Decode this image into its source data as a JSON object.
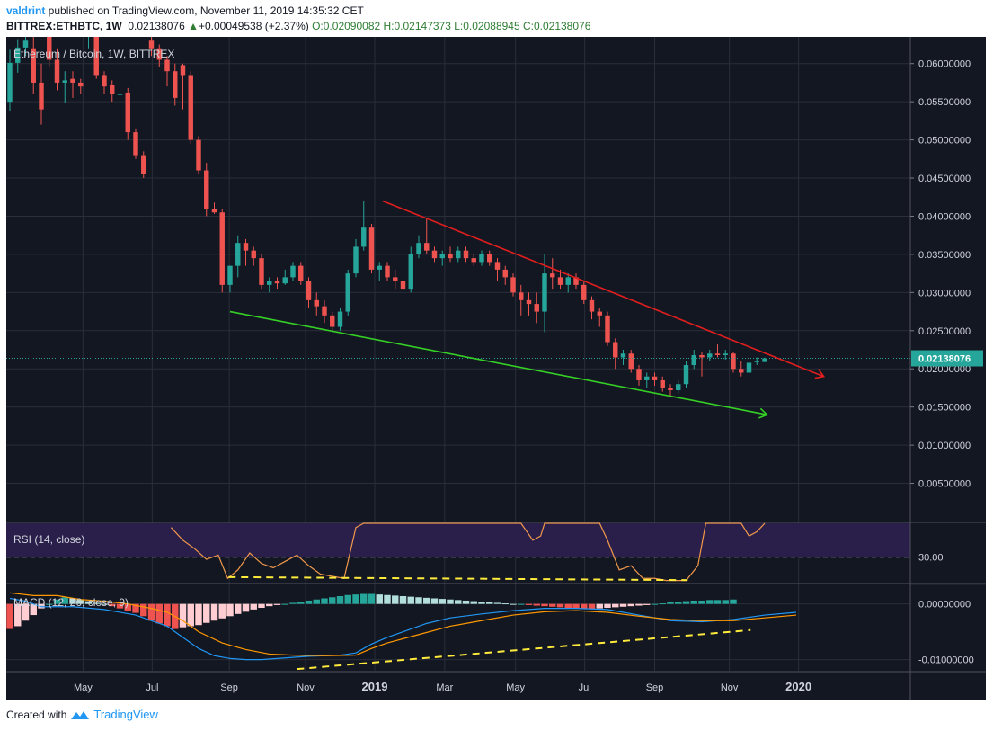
{
  "header": {
    "line1": {
      "user": "valdrint",
      "text": " published on TradingView.com, November 11, 2019 14:35:32 CET"
    },
    "line2": {
      "symbol": "BITTREX:ETHBTC, 1W",
      "last": "0.02138076",
      "change": "+0.00049538 (+2.37%)",
      "ohlc_text": "O:0.02090082  H:0.02147373  L:0.02088945  C:0.02138076"
    }
  },
  "chart_data": {
    "type": "candlestick",
    "title": "Ethereum / Bitcoin, 1W, BITTREX",
    "price_axis": {
      "ticks": [
        "0.06000000",
        "0.05500000",
        "0.05000000",
        "0.04500000",
        "0.04000000",
        "0.03500000",
        "0.03000000",
        "0.02500000",
        "0.02000000",
        "0.01500000",
        "0.01000000",
        "0.00500000"
      ],
      "tick_values": [
        0.06,
        0.055,
        0.05,
        0.045,
        0.04,
        0.035,
        0.03,
        0.025,
        0.02,
        0.015,
        0.01,
        0.005
      ],
      "ylim": [
        0.0,
        0.0635
      ],
      "current_price_label": "0.02138076",
      "current_price": 0.02138076
    },
    "time_axis": {
      "labels": [
        "May",
        "Jul",
        "Sep",
        "Nov",
        "2019",
        "Mar",
        "May",
        "Jul",
        "Sep",
        "Nov",
        "2020"
      ],
      "label_weeks": [
        9.3,
        18.1,
        27.9,
        37.6,
        46.4,
        55.3,
        64.3,
        73.1,
        82.0,
        91.5,
        100.3
      ],
      "bold": [
        "2019",
        "2020"
      ]
    },
    "candles": [
      [
        0.055,
        0.0618,
        0.0538,
        0.0601
      ],
      [
        0.0601,
        0.0632,
        0.0588,
        0.0621
      ],
      [
        0.0621,
        0.065,
        0.061,
        0.063
      ],
      [
        0.062,
        0.0635,
        0.056,
        0.0575
      ],
      [
        0.0575,
        0.06,
        0.052,
        0.054
      ],
      [
        0.0635,
        0.065,
        0.0595,
        0.0605
      ],
      [
        0.0605,
        0.062,
        0.0565,
        0.0575
      ],
      [
        0.0575,
        0.059,
        0.0548,
        0.0578
      ],
      [
        0.058,
        0.059,
        0.0555,
        0.0575
      ],
      [
        0.0575,
        0.058,
        0.056,
        0.057
      ],
      [
        0.064,
        0.066,
        0.062,
        0.0645
      ],
      [
        0.0638,
        0.0645,
        0.058,
        0.0585
      ],
      [
        0.0585,
        0.059,
        0.056,
        0.057
      ],
      [
        0.0572,
        0.0578,
        0.055,
        0.056
      ],
      [
        0.056,
        0.057,
        0.0545,
        0.056
      ],
      [
        0.0562,
        0.0568,
        0.05,
        0.051
      ],
      [
        0.051,
        0.0515,
        0.0475,
        0.048
      ],
      [
        0.048,
        0.0485,
        0.045,
        0.0455
      ],
      [
        0.063,
        0.064,
        0.061,
        0.062
      ],
      [
        0.062,
        0.0625,
        0.0595,
        0.0605
      ],
      [
        0.0605,
        0.061,
        0.057,
        0.059
      ],
      [
        0.059,
        0.06,
        0.0545,
        0.0555
      ],
      [
        0.0598,
        0.06,
        0.054,
        0.0585
      ],
      [
        0.0585,
        0.059,
        0.0495,
        0.05
      ],
      [
        0.05,
        0.0505,
        0.0455,
        0.046
      ],
      [
        0.046,
        0.047,
        0.04,
        0.041
      ],
      [
        0.041,
        0.0418,
        0.0403,
        0.0405
      ],
      [
        0.0405,
        0.041,
        0.03,
        0.031
      ],
      [
        0.031,
        0.0335,
        0.03,
        0.0335
      ],
      [
        0.0335,
        0.0375,
        0.032,
        0.0365
      ],
      [
        0.0365,
        0.037,
        0.0335,
        0.0355
      ],
      [
        0.0355,
        0.036,
        0.0335,
        0.0345
      ],
      [
        0.0345,
        0.035,
        0.0305,
        0.031
      ],
      [
        0.031,
        0.032,
        0.03,
        0.0315
      ],
      [
        0.0315,
        0.032,
        0.0305,
        0.0312
      ],
      [
        0.0312,
        0.033,
        0.031,
        0.032
      ],
      [
        0.032,
        0.034,
        0.0315,
        0.0335
      ],
      [
        0.0335,
        0.034,
        0.031,
        0.0315
      ],
      [
        0.0315,
        0.032,
        0.028,
        0.029
      ],
      [
        0.029,
        0.03,
        0.027,
        0.0282
      ],
      [
        0.0282,
        0.029,
        0.026,
        0.027
      ],
      [
        0.027,
        0.0275,
        0.025,
        0.0255
      ],
      [
        0.0255,
        0.028,
        0.025,
        0.0275
      ],
      [
        0.0275,
        0.033,
        0.027,
        0.0325
      ],
      [
        0.0325,
        0.037,
        0.032,
        0.036
      ],
      [
        0.036,
        0.042,
        0.0355,
        0.0385
      ],
      [
        0.0385,
        0.039,
        0.0325,
        0.033
      ],
      [
        0.033,
        0.034,
        0.0315,
        0.0335
      ],
      [
        0.0335,
        0.034,
        0.0315,
        0.032
      ],
      [
        0.032,
        0.033,
        0.0305,
        0.0315
      ],
      [
        0.0315,
        0.032,
        0.03,
        0.0305
      ],
      [
        0.0305,
        0.036,
        0.03,
        0.035
      ],
      [
        0.035,
        0.0375,
        0.0345,
        0.0365
      ],
      [
        0.0365,
        0.0397,
        0.035,
        0.0355
      ],
      [
        0.0355,
        0.036,
        0.034,
        0.0345
      ],
      [
        0.0345,
        0.0355,
        0.0335,
        0.035
      ],
      [
        0.035,
        0.036,
        0.034,
        0.0345
      ],
      [
        0.0345,
        0.036,
        0.034,
        0.0355
      ],
      [
        0.0355,
        0.036,
        0.034,
        0.0345
      ],
      [
        0.0345,
        0.035,
        0.0335,
        0.034
      ],
      [
        0.034,
        0.0355,
        0.0335,
        0.035
      ],
      [
        0.035,
        0.0355,
        0.0335,
        0.034
      ],
      [
        0.034,
        0.0345,
        0.0315,
        0.033
      ],
      [
        0.033,
        0.0335,
        0.031,
        0.032
      ],
      [
        0.032,
        0.0325,
        0.0295,
        0.03
      ],
      [
        0.03,
        0.031,
        0.027,
        0.029
      ],
      [
        0.029,
        0.03,
        0.027,
        0.0285
      ],
      [
        0.0285,
        0.03,
        0.026,
        0.0275
      ],
      [
        0.0275,
        0.035,
        0.0248,
        0.0325
      ],
      [
        0.0325,
        0.0345,
        0.0305,
        0.032
      ],
      [
        0.032,
        0.033,
        0.0305,
        0.031
      ],
      [
        0.031,
        0.0325,
        0.03,
        0.032
      ],
      [
        0.032,
        0.0325,
        0.0305,
        0.031
      ],
      [
        0.031,
        0.0315,
        0.0285,
        0.029
      ],
      [
        0.029,
        0.0295,
        0.0265,
        0.0275
      ],
      [
        0.0275,
        0.028,
        0.0255,
        0.027
      ],
      [
        0.027,
        0.0275,
        0.023,
        0.0235
      ],
      [
        0.0235,
        0.024,
        0.02,
        0.0215
      ],
      [
        0.0215,
        0.0225,
        0.0205,
        0.022
      ],
      [
        0.022,
        0.0225,
        0.0195,
        0.02
      ],
      [
        0.02,
        0.0205,
        0.0178,
        0.0185
      ],
      [
        0.0185,
        0.0195,
        0.0175,
        0.019
      ],
      [
        0.019,
        0.0195,
        0.0178,
        0.0185
      ],
      [
        0.0185,
        0.019,
        0.017,
        0.0175
      ],
      [
        0.0175,
        0.018,
        0.0165,
        0.0172
      ],
      [
        0.0172,
        0.0185,
        0.0168,
        0.018
      ],
      [
        0.018,
        0.021,
        0.0175,
        0.0205
      ],
      [
        0.0205,
        0.0225,
        0.02,
        0.0218
      ],
      [
        0.0218,
        0.0222,
        0.019,
        0.0215
      ],
      [
        0.0215,
        0.0225,
        0.021,
        0.022
      ],
      [
        0.022,
        0.0232,
        0.0215,
        0.0218
      ],
      [
        0.0218,
        0.0225,
        0.0212,
        0.022
      ],
      [
        0.022,
        0.0222,
        0.0195,
        0.02
      ],
      [
        0.02,
        0.021,
        0.019,
        0.0195
      ],
      [
        0.0195,
        0.0212,
        0.0192,
        0.0208
      ],
      [
        0.0209,
        0.0215,
        0.0205,
        0.021
      ],
      [
        0.0209,
        0.02147,
        0.02089,
        0.02138
      ]
    ],
    "trendlines": [
      {
        "name": "resistance",
        "color": "#e01e1e",
        "from": [
          47.4,
          0.042
        ],
        "to": [
          103.5,
          0.019
        ]
      },
      {
        "name": "support",
        "color": "#35d025",
        "from": [
          28.0,
          0.0275
        ],
        "to": [
          96.3,
          0.014
        ]
      }
    ],
    "rsi": {
      "label": "RSI (14, close)",
      "level_label": "30.00",
      "level": 30,
      "ylim": [
        24,
        38
      ],
      "values": [
        [
          20.5,
          37
        ],
        [
          22,
          34
        ],
        [
          23.5,
          32
        ],
        [
          25,
          29.5
        ],
        [
          26.5,
          30.5
        ],
        [
          27.7,
          25
        ],
        [
          29,
          27
        ],
        [
          30.5,
          31
        ],
        [
          32,
          28.5
        ],
        [
          33.5,
          27.5
        ],
        [
          35,
          29
        ],
        [
          36.5,
          30.5
        ],
        [
          38,
          28
        ],
        [
          39.5,
          26
        ],
        [
          41,
          25.5
        ],
        [
          42.5,
          25
        ],
        [
          44,
          37
        ],
        [
          45,
          38
        ],
        [
          65,
          38
        ],
        [
          66.5,
          34
        ],
        [
          67.5,
          35
        ],
        [
          68,
          38
        ],
        [
          75,
          38
        ],
        [
          76,
          34
        ],
        [
          77.5,
          27
        ],
        [
          79,
          28
        ],
        [
          80.5,
          25
        ],
        [
          82,
          25
        ],
        [
          83.5,
          24.5
        ],
        [
          85,
          24.5
        ],
        [
          86,
          24.5
        ],
        [
          87.5,
          28
        ],
        [
          88.5,
          38
        ],
        [
          93,
          38
        ],
        [
          94,
          35
        ],
        [
          95,
          36
        ],
        [
          96,
          38
        ]
      ],
      "divergence": {
        "from": [
          27.8,
          25.3
        ],
        "to": [
          86.2,
          24.6
        ],
        "color": "#ffeb3b"
      }
    },
    "macd": {
      "label": "MACD (12, 26, close, 9)",
      "ticks": [
        "0.00000000",
        "-0.01000000"
      ],
      "tick_values": [
        0.0,
        -0.01
      ],
      "ylim": [
        -0.012,
        0.0035
      ],
      "histogram": [
        -0.0045,
        -0.004,
        -0.003,
        -0.002,
        -0.0008,
        0.0,
        0.0008,
        0.0012,
        0.001,
        0.0008,
        0.0005,
        0.0002,
        0.0,
        -0.0004,
        -0.0008,
        -0.0012,
        -0.0016,
        -0.0022,
        -0.003,
        -0.0035,
        -0.004,
        -0.0045,
        -0.0042,
        -0.004,
        -0.0038,
        -0.0034,
        -0.003,
        -0.0026,
        -0.0022,
        -0.0018,
        -0.0014,
        -0.001,
        -0.0007,
        -0.0004,
        -0.0002,
        0.0,
        0.0002,
        0.0004,
        0.0006,
        0.0008,
        0.001,
        0.0012,
        0.0014,
        0.0016,
        0.0017,
        0.0018,
        0.0018,
        0.0017,
        0.0016,
        0.0015,
        0.0014,
        0.0013,
        0.0012,
        0.0011,
        0.001,
        0.0009,
        0.0008,
        0.0007,
        0.0006,
        0.0005,
        0.0004,
        0.0003,
        0.0002,
        0.0001,
        0.0,
        0.0,
        -0.0002,
        -0.0003,
        -0.0004,
        -0.0005,
        -0.0006,
        -0.0007,
        -0.0008,
        -0.0009,
        -0.0009,
        -0.0008,
        -0.0007,
        -0.0006,
        -0.0005,
        -0.0004,
        -0.0003,
        -0.0002,
        0.0,
        0.0001,
        0.0003,
        0.0004,
        0.0005,
        0.0006,
        0.0006,
        0.0007,
        0.0007,
        0.0007,
        0.0008
      ],
      "macd_line": [
        [
          0,
          0.001
        ],
        [
          2,
          0.0005
        ],
        [
          4,
          -0.0005
        ],
        [
          8,
          -0.0005
        ],
        [
          12,
          -0.001
        ],
        [
          16,
          -0.002
        ],
        [
          18,
          -0.003
        ],
        [
          20,
          -0.004
        ],
        [
          22,
          -0.006
        ],
        [
          24,
          -0.008
        ],
        [
          26,
          -0.0093
        ],
        [
          28,
          -0.0098
        ],
        [
          30,
          -0.01
        ],
        [
          32,
          -0.01
        ],
        [
          34,
          -0.0098
        ],
        [
          36,
          -0.0096
        ],
        [
          38,
          -0.0094
        ],
        [
          40,
          -0.0093
        ],
        [
          42,
          -0.0092
        ],
        [
          44,
          -0.0088
        ],
        [
          46,
          -0.0072
        ],
        [
          48,
          -0.006
        ],
        [
          50,
          -0.005
        ],
        [
          53,
          -0.0035
        ],
        [
          56,
          -0.0025
        ],
        [
          60,
          -0.0018
        ],
        [
          64,
          -0.0012
        ],
        [
          68,
          -0.0008
        ],
        [
          72,
          -0.0008
        ],
        [
          76,
          -0.001
        ],
        [
          80,
          -0.002
        ],
        [
          84,
          -0.003
        ],
        [
          88,
          -0.0032
        ],
        [
          92,
          -0.0028
        ],
        [
          96,
          -0.002
        ],
        [
          100,
          -0.0015
        ]
      ],
      "signal_line": [
        [
          0,
          0.002
        ],
        [
          3,
          0.0015
        ],
        [
          6,
          0.0015
        ],
        [
          9,
          0.0008
        ],
        [
          12,
          0.0005
        ],
        [
          15,
          0.0
        ],
        [
          18,
          -0.0008
        ],
        [
          20,
          -0.0015
        ],
        [
          22,
          -0.003
        ],
        [
          24,
          -0.005
        ],
        [
          27,
          -0.007
        ],
        [
          30,
          -0.0082
        ],
        [
          33,
          -0.009
        ],
        [
          36,
          -0.0092
        ],
        [
          40,
          -0.0093
        ],
        [
          44,
          -0.0092
        ],
        [
          46,
          -0.008
        ],
        [
          48,
          -0.007
        ],
        [
          52,
          -0.0055
        ],
        [
          56,
          -0.004
        ],
        [
          60,
          -0.003
        ],
        [
          64,
          -0.002
        ],
        [
          68,
          -0.0014
        ],
        [
          72,
          -0.0012
        ],
        [
          76,
          -0.0015
        ],
        [
          80,
          -0.0022
        ],
        [
          84,
          -0.0028
        ],
        [
          88,
          -0.003
        ],
        [
          92,
          -0.003
        ],
        [
          96,
          -0.0025
        ],
        [
          100,
          -0.002
        ]
      ],
      "divergence": {
        "from": [
          36.5,
          -0.0117
        ],
        "to": [
          94.2,
          -0.0047
        ],
        "color": "#ffeb3b"
      }
    }
  },
  "colors": {
    "background": "#131722",
    "grid": "#2a2e39",
    "bull": "#26a69a",
    "bear": "#ef5350",
    "rsi_band": "#2a1f4a",
    "rsi_line": "#f2994a",
    "macd_line": "#2196f3",
    "signal_line": "#ff9800",
    "hist_pos_strong": "#26a69a",
    "hist_pos_weak": "#b2dfdb",
    "hist_neg_strong": "#ef5350",
    "hist_neg_weak": "#ffcdd2"
  },
  "footer": {
    "created_with": "Created with",
    "brand": "TradingView"
  }
}
